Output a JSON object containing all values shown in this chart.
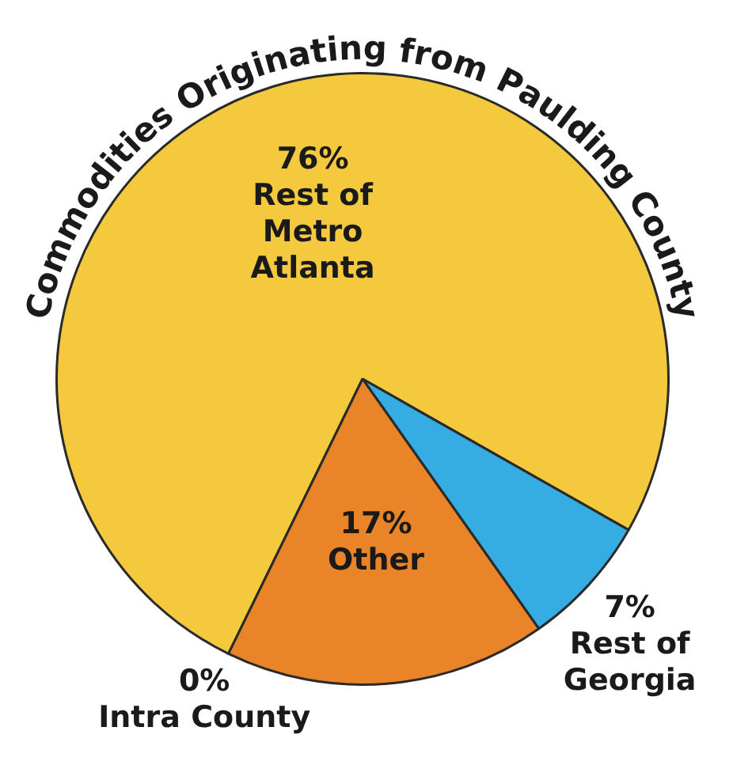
{
  "chart_data": {
    "type": "pie",
    "title": "Commodities Originating from Paulding County",
    "categories": [
      "Rest of Metro Atlanta",
      "Rest of Georgia",
      "Other",
      "Intra County"
    ],
    "values": [
      76,
      7,
      17,
      0
    ],
    "colors": [
      "#f5c93e",
      "#35ade2",
      "#ea8428",
      "#c0c0c0"
    ],
    "value_labels": [
      "76%",
      "7%",
      "17%",
      "0%"
    ],
    "legend": false
  }
}
